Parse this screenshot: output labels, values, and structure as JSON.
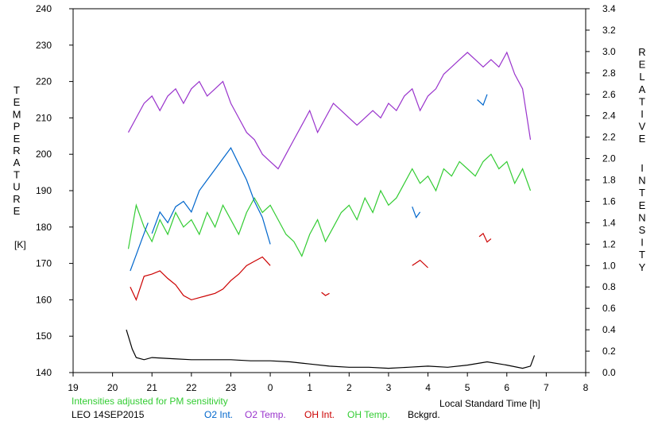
{
  "chart_data": {
    "type": "line",
    "left_axis": {
      "label_letters": [
        "T",
        "E",
        "M",
        "P",
        "E",
        "R",
        "A",
        "T",
        "U",
        "R",
        "E"
      ],
      "unit": "[K]",
      "ylim": [
        140,
        240
      ],
      "ticks": [
        "140",
        "150",
        "160",
        "170",
        "180",
        "190",
        "200",
        "210",
        "220",
        "230",
        "240"
      ]
    },
    "right_axis": {
      "label_word1": [
        "R",
        "E",
        "L",
        "A",
        "T",
        "I",
        "V",
        "E"
      ],
      "label_word2": [
        "I",
        "N",
        "T",
        "E",
        "N",
        "S",
        "I",
        "T",
        "Y"
      ],
      "ylim": [
        0.0,
        3.4
      ],
      "ticks": [
        "0.0",
        "0.2",
        "0.4",
        "0.6",
        "0.8",
        "1.0",
        "1.2",
        "1.4",
        "1.6",
        "1.8",
        "2.0",
        "2.2",
        "2.4",
        "2.6",
        "2.8",
        "3.0",
        "3.2",
        "3.4"
      ]
    },
    "x_axis": {
      "label": "Local Standard Time [h]",
      "xlim": [
        19,
        32
      ],
      "ticks": [
        "19",
        "20",
        "21",
        "22",
        "23",
        "0",
        "1",
        "2",
        "3",
        "4",
        "5",
        "6",
        "7",
        "8"
      ]
    },
    "note": "Intensities adjusted for PM sensitivity",
    "station": "LEO 14SEP2015",
    "legend": [
      {
        "name": "O2 Int.",
        "color": "#0066cc"
      },
      {
        "name": "O2 Temp.",
        "color": "#9933cc"
      },
      {
        "name": "OH Int.",
        "color": "#cc0000"
      },
      {
        "name": "OH Temp.",
        "color": "#33cc33"
      },
      {
        "name": "Bckgrd.",
        "color": "#000000"
      }
    ],
    "series": [
      {
        "name": "O2 Temp.",
        "axis": "left",
        "color": "#9933cc",
        "x": [
          20.4,
          20.6,
          20.8,
          21.0,
          21.2,
          21.4,
          21.6,
          21.8,
          22.0,
          22.2,
          22.4,
          22.6,
          22.8,
          23.0,
          23.2,
          23.4,
          23.6,
          23.8,
          24.0,
          24.2,
          24.4,
          24.6,
          24.8,
          25.0,
          25.2,
          25.4,
          25.6,
          25.8,
          26.0,
          26.2,
          26.4,
          26.6,
          26.8,
          27.0,
          27.2,
          27.4,
          27.6,
          27.8,
          28.0,
          28.2,
          28.4,
          28.6,
          28.8,
          29.0,
          29.2,
          29.4,
          29.6,
          29.8,
          30.0,
          30.2,
          30.4,
          30.6
        ],
        "y": [
          206,
          210,
          214,
          216,
          212,
          216,
          218,
          214,
          218,
          220,
          216,
          218,
          220,
          214,
          210,
          206,
          204,
          200,
          198,
          196,
          200,
          204,
          208,
          212,
          206,
          210,
          214,
          212,
          210,
          208,
          210,
          212,
          210,
          214,
          212,
          216,
          218,
          212,
          216,
          218,
          222,
          224,
          226,
          228,
          226,
          224,
          226,
          224,
          228,
          222,
          218,
          204
        ]
      },
      {
        "name": "OH Temp.",
        "axis": "left",
        "color": "#33cc33",
        "x": [
          20.4,
          20.6,
          20.8,
          21.0,
          21.2,
          21.4,
          21.6,
          21.8,
          22.0,
          22.2,
          22.4,
          22.6,
          22.8,
          23.0,
          23.2,
          23.4,
          23.6,
          23.8,
          24.0,
          24.2,
          24.4,
          24.6,
          24.8,
          25.0,
          25.2,
          25.4,
          25.6,
          25.8,
          26.0,
          26.2,
          26.4,
          26.6,
          26.8,
          27.0,
          27.2,
          27.4,
          27.6,
          27.8,
          28.0,
          28.2,
          28.4,
          28.6,
          28.8,
          29.0,
          29.2,
          29.4,
          29.6,
          29.8,
          30.0,
          30.2,
          30.4,
          30.6
        ],
        "y": [
          174,
          186,
          180,
          176,
          182,
          178,
          184,
          180,
          182,
          178,
          184,
          180,
          186,
          182,
          178,
          184,
          188,
          184,
          186,
          182,
          178,
          176,
          172,
          178,
          182,
          176,
          180,
          184,
          186,
          182,
          188,
          184,
          190,
          186,
          188,
          192,
          196,
          192,
          194,
          190,
          196,
          194,
          198,
          196,
          194,
          198,
          200,
          196,
          198,
          192,
          196,
          190
        ]
      },
      {
        "name": "O2 Int.",
        "axis": "right",
        "color": "#0066cc",
        "segments": [
          {
            "x": [
              20.45,
              20.6,
              20.75,
              20.9
            ],
            "y": [
              0.95,
              1.1,
              1.25,
              1.4
            ]
          },
          {
            "x": [
              21.0,
              21.2,
              21.4,
              21.6,
              21.8,
              22.0,
              22.2,
              22.4,
              22.6,
              22.8,
              23.0,
              23.2,
              23.4,
              23.6,
              23.8,
              24.0
            ],
            "y": [
              1.3,
              1.5,
              1.4,
              1.55,
              1.6,
              1.5,
              1.7,
              1.8,
              1.9,
              2.0,
              2.1,
              1.95,
              1.8,
              1.6,
              1.45,
              1.2
            ]
          },
          {
            "x": [
              27.6,
              27.7,
              27.8
            ],
            "y": [
              1.55,
              1.45,
              1.5
            ]
          },
          {
            "x": [
              29.25,
              29.4,
              29.5
            ],
            "y": [
              2.55,
              2.5,
              2.6
            ]
          }
        ]
      },
      {
        "name": "OH Int.",
        "axis": "right",
        "color": "#cc0000",
        "segments": [
          {
            "x": [
              20.45,
              20.6,
              20.8,
              21.0,
              21.2,
              21.4,
              21.6,
              21.8,
              22.0,
              22.2,
              22.4,
              22.6,
              22.8,
              23.0,
              23.2,
              23.4,
              23.6,
              23.8,
              24.0
            ],
            "y": [
              0.8,
              0.68,
              0.9,
              0.92,
              0.95,
              0.88,
              0.82,
              0.72,
              0.68,
              0.7,
              0.72,
              0.74,
              0.78,
              0.86,
              0.92,
              1.0,
              1.04,
              1.08,
              1.0
            ]
          },
          {
            "x": [
              25.3,
              25.4,
              25.5
            ],
            "y": [
              0.75,
              0.72,
              0.74
            ]
          },
          {
            "x": [
              27.6,
              27.8,
              28.0
            ],
            "y": [
              1.0,
              1.05,
              0.98
            ]
          },
          {
            "x": [
              29.3,
              29.4,
              29.5,
              29.6
            ],
            "y": [
              1.27,
              1.3,
              1.22,
              1.25
            ]
          }
        ]
      },
      {
        "name": "Bckgrd.",
        "axis": "right",
        "color": "#000000",
        "x": [
          20.35,
          20.5,
          20.6,
          20.8,
          21.0,
          21.5,
          22.0,
          22.5,
          23.0,
          23.5,
          24.0,
          24.5,
          25.0,
          25.5,
          26.0,
          26.5,
          27.0,
          27.5,
          28.0,
          28.5,
          29.0,
          29.5,
          30.0,
          30.4,
          30.6,
          30.7
        ],
        "y": [
          0.4,
          0.22,
          0.14,
          0.12,
          0.14,
          0.13,
          0.12,
          0.12,
          0.12,
          0.11,
          0.11,
          0.1,
          0.08,
          0.06,
          0.05,
          0.05,
          0.04,
          0.05,
          0.06,
          0.05,
          0.07,
          0.1,
          0.07,
          0.04,
          0.06,
          0.16
        ]
      }
    ]
  }
}
